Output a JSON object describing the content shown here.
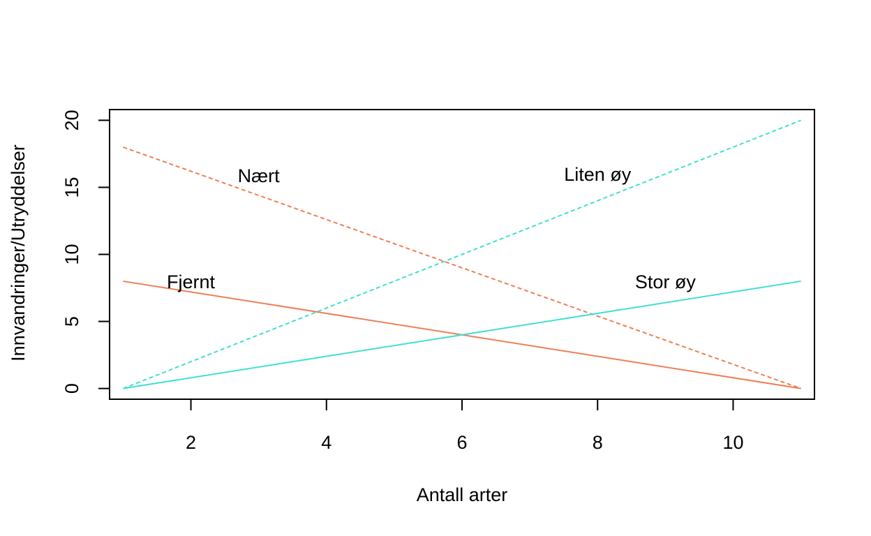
{
  "chart_data": {
    "type": "line",
    "title": "",
    "xlabel": "Antall arter",
    "ylabel": "Innvandringer/Utryddelser",
    "xlim": [
      0.8,
      11.2
    ],
    "ylim": [
      -0.8,
      20.8
    ],
    "xticks": [
      2,
      4,
      6,
      8,
      10
    ],
    "yticks": [
      0,
      5,
      10,
      15,
      20
    ],
    "grid": false,
    "legend": "none",
    "series": [
      {
        "x": [
          1,
          11
        ],
        "y": [
          18,
          0
        ],
        "color": "#EE7F55",
        "dash": "dashed"
      },
      {
        "x": [
          1,
          11
        ],
        "y": [
          8,
          0
        ],
        "color": "#EE7F55",
        "dash": "solid"
      },
      {
        "x": [
          1,
          11
        ],
        "y": [
          0,
          20
        ],
        "color": "#40E0D0",
        "dash": "dashed"
      },
      {
        "x": [
          1,
          11
        ],
        "y": [
          0,
          8
        ],
        "color": "#40E0D0",
        "dash": "solid"
      }
    ],
    "annotations": [
      {
        "text": "Nært",
        "x": 3.0,
        "y": 15.9
      },
      {
        "text": "Fjernt",
        "x": 2.0,
        "y": 8.0
      },
      {
        "text": "Liten øy",
        "x": 8.0,
        "y": 16.0
      },
      {
        "text": "Stor øy",
        "x": 9.0,
        "y": 8.0
      }
    ]
  }
}
